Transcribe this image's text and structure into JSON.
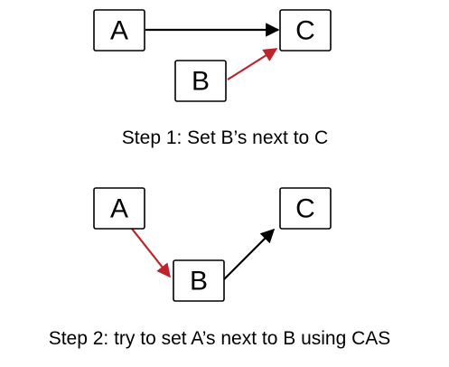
{
  "colors": {
    "background": "#ffffff",
    "node_border": "#000000",
    "edge_default": "#000000",
    "edge_highlight": "#c0222b"
  },
  "step1": {
    "nodes": {
      "a": "A",
      "b": "B",
      "c": "C"
    },
    "edges": [
      {
        "from": "A",
        "to": "C",
        "color": "#000000"
      },
      {
        "from": "B",
        "to": "C",
        "color": "#c0222b"
      }
    ],
    "caption": "Step 1: Set B’s next to C"
  },
  "step2": {
    "nodes": {
      "a": "A",
      "b": "B",
      "c": "C"
    },
    "edges": [
      {
        "from": "A",
        "to": "B",
        "color": "#c0222b"
      },
      {
        "from": "B",
        "to": "C",
        "color": "#000000"
      }
    ],
    "caption": "Step 2: try to set A’s next to B using CAS"
  }
}
